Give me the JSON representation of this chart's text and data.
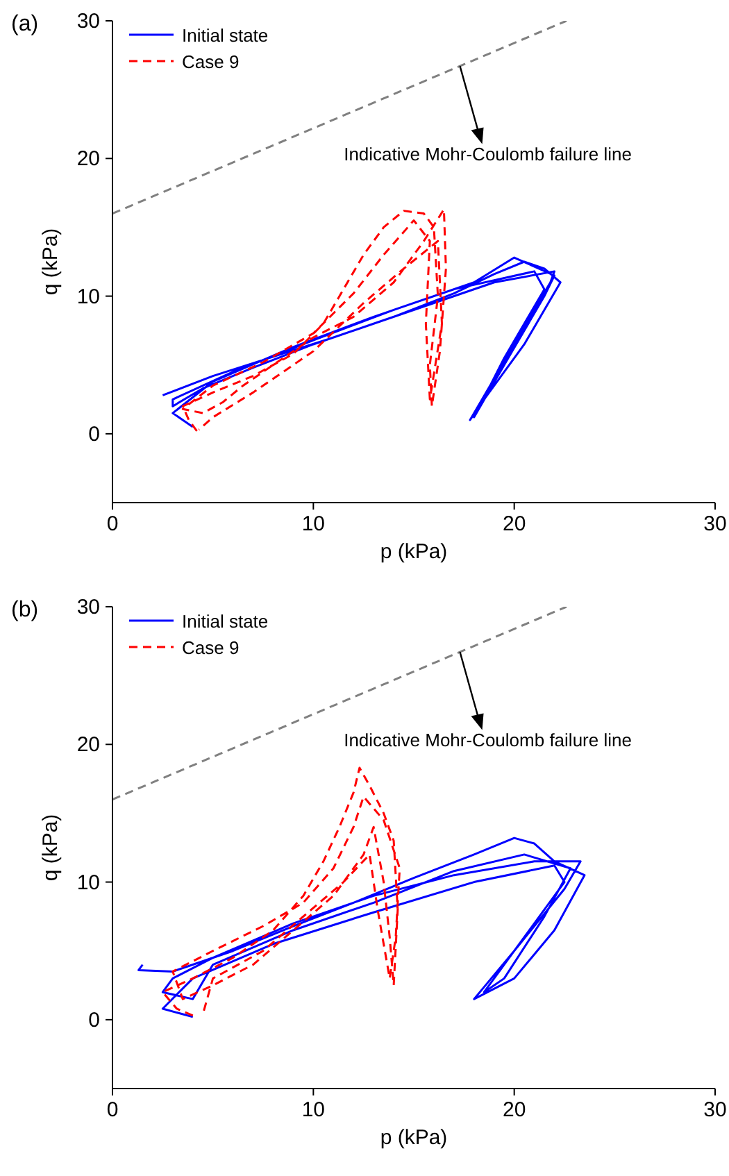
{
  "chart_data": [
    {
      "type": "line",
      "xlabel": "p (kPa)",
      "ylabel": "q (kPa)",
      "xlim": [
        0,
        30
      ],
      "ylim": [
        -5,
        30
      ],
      "xticks": [
        0,
        10,
        20,
        30
      ],
      "yticks": [
        0,
        10,
        20,
        30
      ],
      "legend": "top left",
      "annotations": [
        "(a)",
        {
          "text": "Indicative Mohr-Coulomb failure line",
          "x": 17.3,
          "y": 26.7
        }
      ],
      "series": [
        {
          "name": "Initial state",
          "color": "#0000ff",
          "line_style": "solid",
          "x": [
            2.5,
            5,
            8,
            11,
            14,
            17,
            19,
            20.5,
            21.5,
            22.3,
            20.5,
            18.5,
            17.8,
            19,
            20.5,
            21.8,
            22,
            19,
            16,
            13,
            10,
            7,
            4.5,
            3,
            3,
            6,
            10,
            14,
            18,
            20,
            22,
            21.5,
            19.5,
            18,
            19.5,
            21.5,
            21,
            17,
            13,
            9,
            5,
            3,
            3.5,
            4
          ],
          "values": [
            2.8,
            4.2,
            5.6,
            7,
            8.5,
            10.2,
            11.6,
            12.5,
            12,
            11,
            6.5,
            2.5,
            1,
            4,
            7.8,
            11,
            11.8,
            11,
            9.5,
            8,
            6.5,
            4.8,
            3.3,
            2,
            2.5,
            4.5,
            6.8,
            9,
            11,
            12.8,
            11.5,
            10,
            5,
            1.2,
            5.5,
            10.5,
            11.8,
            10.5,
            8.5,
            6.3,
            3.8,
            1.5,
            1,
            0.5
          ]
        },
        {
          "name": "Case 9",
          "color": "#ff0000",
          "line_style": "dashed",
          "x": [
            4.2,
            3.8,
            3.5,
            5,
            7,
            9,
            10.5,
            11.5,
            12.5,
            13.5,
            14.5,
            15.5,
            16,
            16.2,
            15.8,
            15.9,
            16.3,
            16.6,
            16.5,
            15.5,
            14,
            12,
            10,
            8,
            6.5,
            5.5,
            4.5,
            3.5,
            5,
            7.5,
            10,
            12,
            13.5,
            15,
            15.8,
            15.6,
            15.8,
            16.4,
            16.2,
            14.5,
            12.5,
            10,
            7,
            5,
            4.3
          ],
          "values": [
            0.2,
            1,
            2,
            3,
            4.2,
            5.8,
            8,
            10.5,
            13,
            15,
            16.2,
            16,
            15,
            10,
            5,
            2,
            6,
            12,
            16.3,
            14,
            11,
            8.5,
            7,
            5,
            3.5,
            2.3,
            1.5,
            1.8,
            3.5,
            5.2,
            7.3,
            10.2,
            13,
            15.5,
            14,
            8,
            2.5,
            8,
            14,
            12,
            9.5,
            6,
            3,
            1.2,
            0.3
          ]
        },
        {
          "color": "#808080",
          "line_style": "dashed",
          "x": [
            0,
            22.6
          ],
          "values": [
            16,
            30
          ]
        }
      ]
    },
    {
      "type": "line",
      "xlabel": "p (kPa)",
      "ylabel": "q (kPa)",
      "xlim": [
        0,
        30
      ],
      "ylim": [
        -5,
        30
      ],
      "xticks": [
        0,
        10,
        20,
        30
      ],
      "yticks": [
        0,
        10,
        20,
        30
      ],
      "legend": "top left",
      "annotations": [
        "(b)",
        {
          "text": "Indicative Mohr-Coulomb failure line",
          "x": 17.3,
          "y": 26.7
        }
      ],
      "series": [
        {
          "name": "Initial state",
          "color": "#0000ff",
          "line_style": "solid",
          "x": [
            1.5,
            1.3,
            3,
            6,
            9,
            12,
            15,
            18,
            20,
            21,
            22,
            23.5,
            22,
            20,
            18,
            20,
            22.5,
            23.3,
            21,
            17,
            13,
            9,
            5,
            3,
            2.5,
            4,
            5,
            9,
            13,
            17,
            20.5,
            22.8,
            21.5,
            19.5,
            18.5,
            20.5,
            22.5,
            22,
            18,
            13,
            8,
            4,
            2.5,
            4
          ],
          "values": [
            4,
            3.6,
            3.5,
            5,
            6.8,
            8.5,
            10.3,
            12,
            13.2,
            12.8,
            11.5,
            10.5,
            6.5,
            3,
            1.5,
            5,
            9.5,
            11.5,
            11.5,
            10.5,
            9,
            7,
            4.5,
            3,
            2,
            1.5,
            4,
            6.5,
            8.5,
            10.8,
            12,
            11,
            7.5,
            3,
            2,
            6,
            10,
            11.2,
            10,
            7.8,
            5.5,
            3,
            0.8,
            0.2
          ]
        },
        {
          "name": "Case 9",
          "color": "#ff0000",
          "line_style": "dashed",
          "x": [
            4,
            3.2,
            2.5,
            4,
            6,
            8,
            9.5,
            10.5,
            11.3,
            12,
            12.3,
            12.8,
            13.5,
            14,
            14.2,
            14,
            13.8,
            13.5,
            13,
            12.5,
            11,
            9,
            7,
            5,
            3.5,
            3,
            5,
            7.5,
            9.5,
            11,
            12,
            12.5,
            13.5,
            14.3,
            14.1,
            13.8,
            13.2,
            12.8,
            11.5,
            9.5,
            7.5,
            5,
            4.5
          ],
          "values": [
            0.3,
            0.8,
            2,
            3,
            4.5,
            6.5,
            9,
            11.5,
            14,
            16.5,
            18.3,
            17,
            15,
            13,
            8,
            2.5,
            6,
            10,
            14,
            12,
            9,
            6.5,
            4,
            2.5,
            1.5,
            3.5,
            5,
            6.8,
            8.5,
            11,
            14,
            16.2,
            14.5,
            11,
            6,
            3,
            8,
            12,
            10,
            7.5,
            5,
            3,
            0.4
          ]
        },
        {
          "color": "#808080",
          "line_style": "dashed",
          "x": [
            0,
            22.6
          ],
          "values": [
            16,
            30
          ]
        }
      ]
    }
  ]
}
